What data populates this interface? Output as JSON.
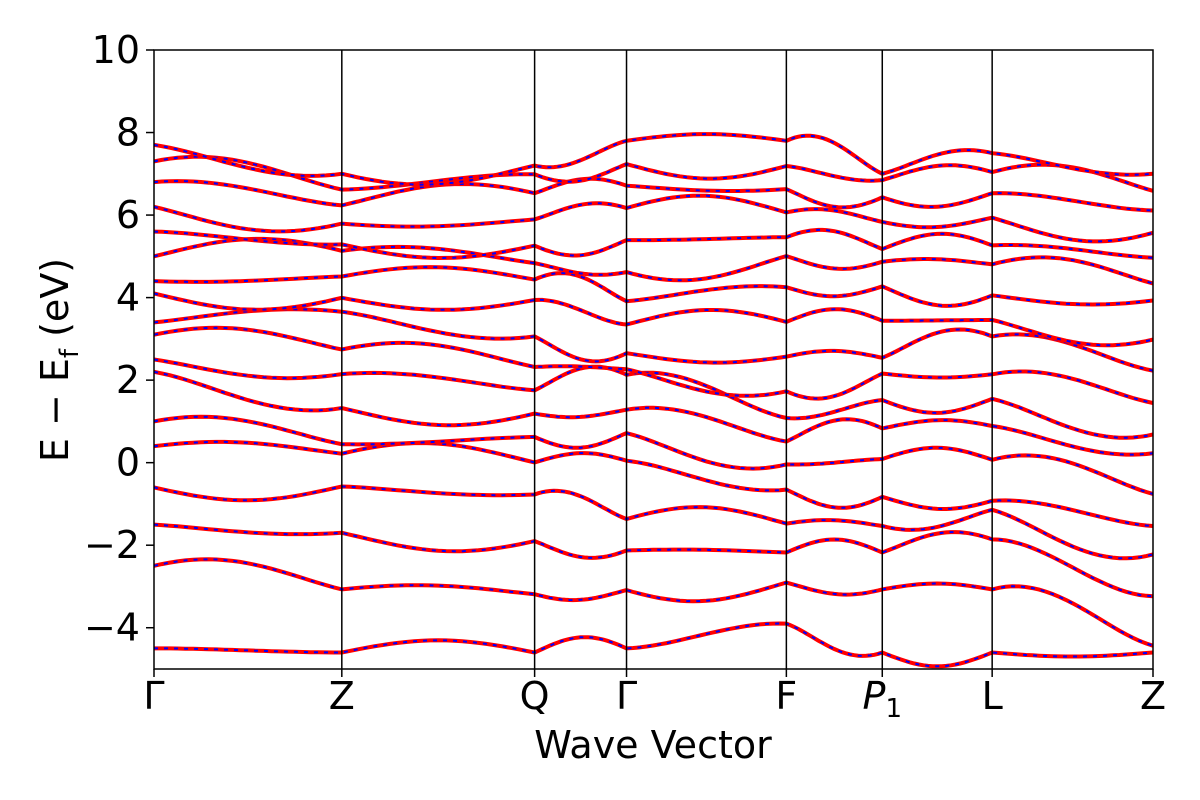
{
  "chart_data": {
    "type": "line",
    "title": "",
    "xlabel": "Wave Vector",
    "ylabel": "E − E_f (eV)",
    "ylabel_parts": {
      "main": "E  −  E",
      "sub": "f",
      "unit": " (eV)"
    },
    "ylim": [
      -5,
      10
    ],
    "yticks": [
      -4,
      -2,
      0,
      2,
      4,
      6,
      8,
      10
    ],
    "ytick_labels": [
      "−4",
      "−2",
      "0",
      "2",
      "4",
      "6",
      "8",
      "10"
    ],
    "xticks": [
      {
        "label": "Γ",
        "sub": "",
        "pos": 0.0
      },
      {
        "label": "Z",
        "sub": "",
        "pos": 0.188
      },
      {
        "label": "Q",
        "sub": "",
        "pos": 0.381
      },
      {
        "label": "Γ",
        "sub": "",
        "pos": 0.473
      },
      {
        "label": "F",
        "sub": "",
        "pos": 0.633
      },
      {
        "label": "P",
        "sub": "1",
        "pos": 0.729
      },
      {
        "label": "L",
        "sub": "",
        "pos": 0.839
      },
      {
        "label": "Z",
        "sub": "",
        "pos": 1.0
      }
    ],
    "xlim": [
      0,
      1
    ],
    "grid": false,
    "series_colors": {
      "solid": "#ff0000",
      "dashed": "#0000ff"
    },
    "bands_at_high_symmetry_points": [
      [
        -4.5,
        -2.5,
        -1.5,
        -0.6,
        0.4,
        1.0,
        2.2,
        2.5,
        3.1,
        3.4,
        4.1,
        4.4,
        5.0,
        5.6,
        6.2,
        6.8,
        7.3,
        7.7
      ],
      [
        -4.6,
        -2.6,
        -0.9,
        0.2,
        0.5,
        1.9,
        2.6,
        3.8,
        4.1,
        5.1,
        5.3,
        6.0,
        6.5,
        7.0
      ],
      [
        -4.6,
        -2.6,
        -0.9,
        0.2,
        1.0,
        1.8,
        2.6,
        3.9,
        4.6,
        5.1,
        6.0,
        6.9,
        7.2
      ],
      [
        -4.5,
        -2.5,
        -1.6,
        0.4,
        1.0,
        2.2,
        2.3,
        3.3,
        4.1,
        5.2,
        6.3,
        7.0,
        7.8
      ],
      [
        -3.9,
        -2.6,
        -1.8,
        -0.7,
        0.1,
        0.8,
        1.6,
        2.7,
        3.8,
        4.9,
        5.5,
        6.3,
        7.0,
        7.8
      ],
      [
        -4.6,
        -2.6,
        -1.8,
        -0.9,
        0.3,
        1.2,
        2.1,
        2.6,
        3.9,
        4.8,
        5.2,
        6.1,
        6.8,
        7.0
      ],
      [
        -4.6,
        -2.6,
        -1.2,
        -1.0,
        0.3,
        1.3,
        2.0,
        3.2,
        3.6,
        4.7,
        5.3,
        6.2,
        6.9,
        7.5
      ],
      [
        -4.6,
        -4.4,
        -2.6,
        -1.8,
        -0.9,
        0.3,
        0.8,
        1.9,
        2.7,
        3.9,
        4.4,
        5.2,
        5.9,
        6.5,
        7.0
      ]
    ]
  }
}
